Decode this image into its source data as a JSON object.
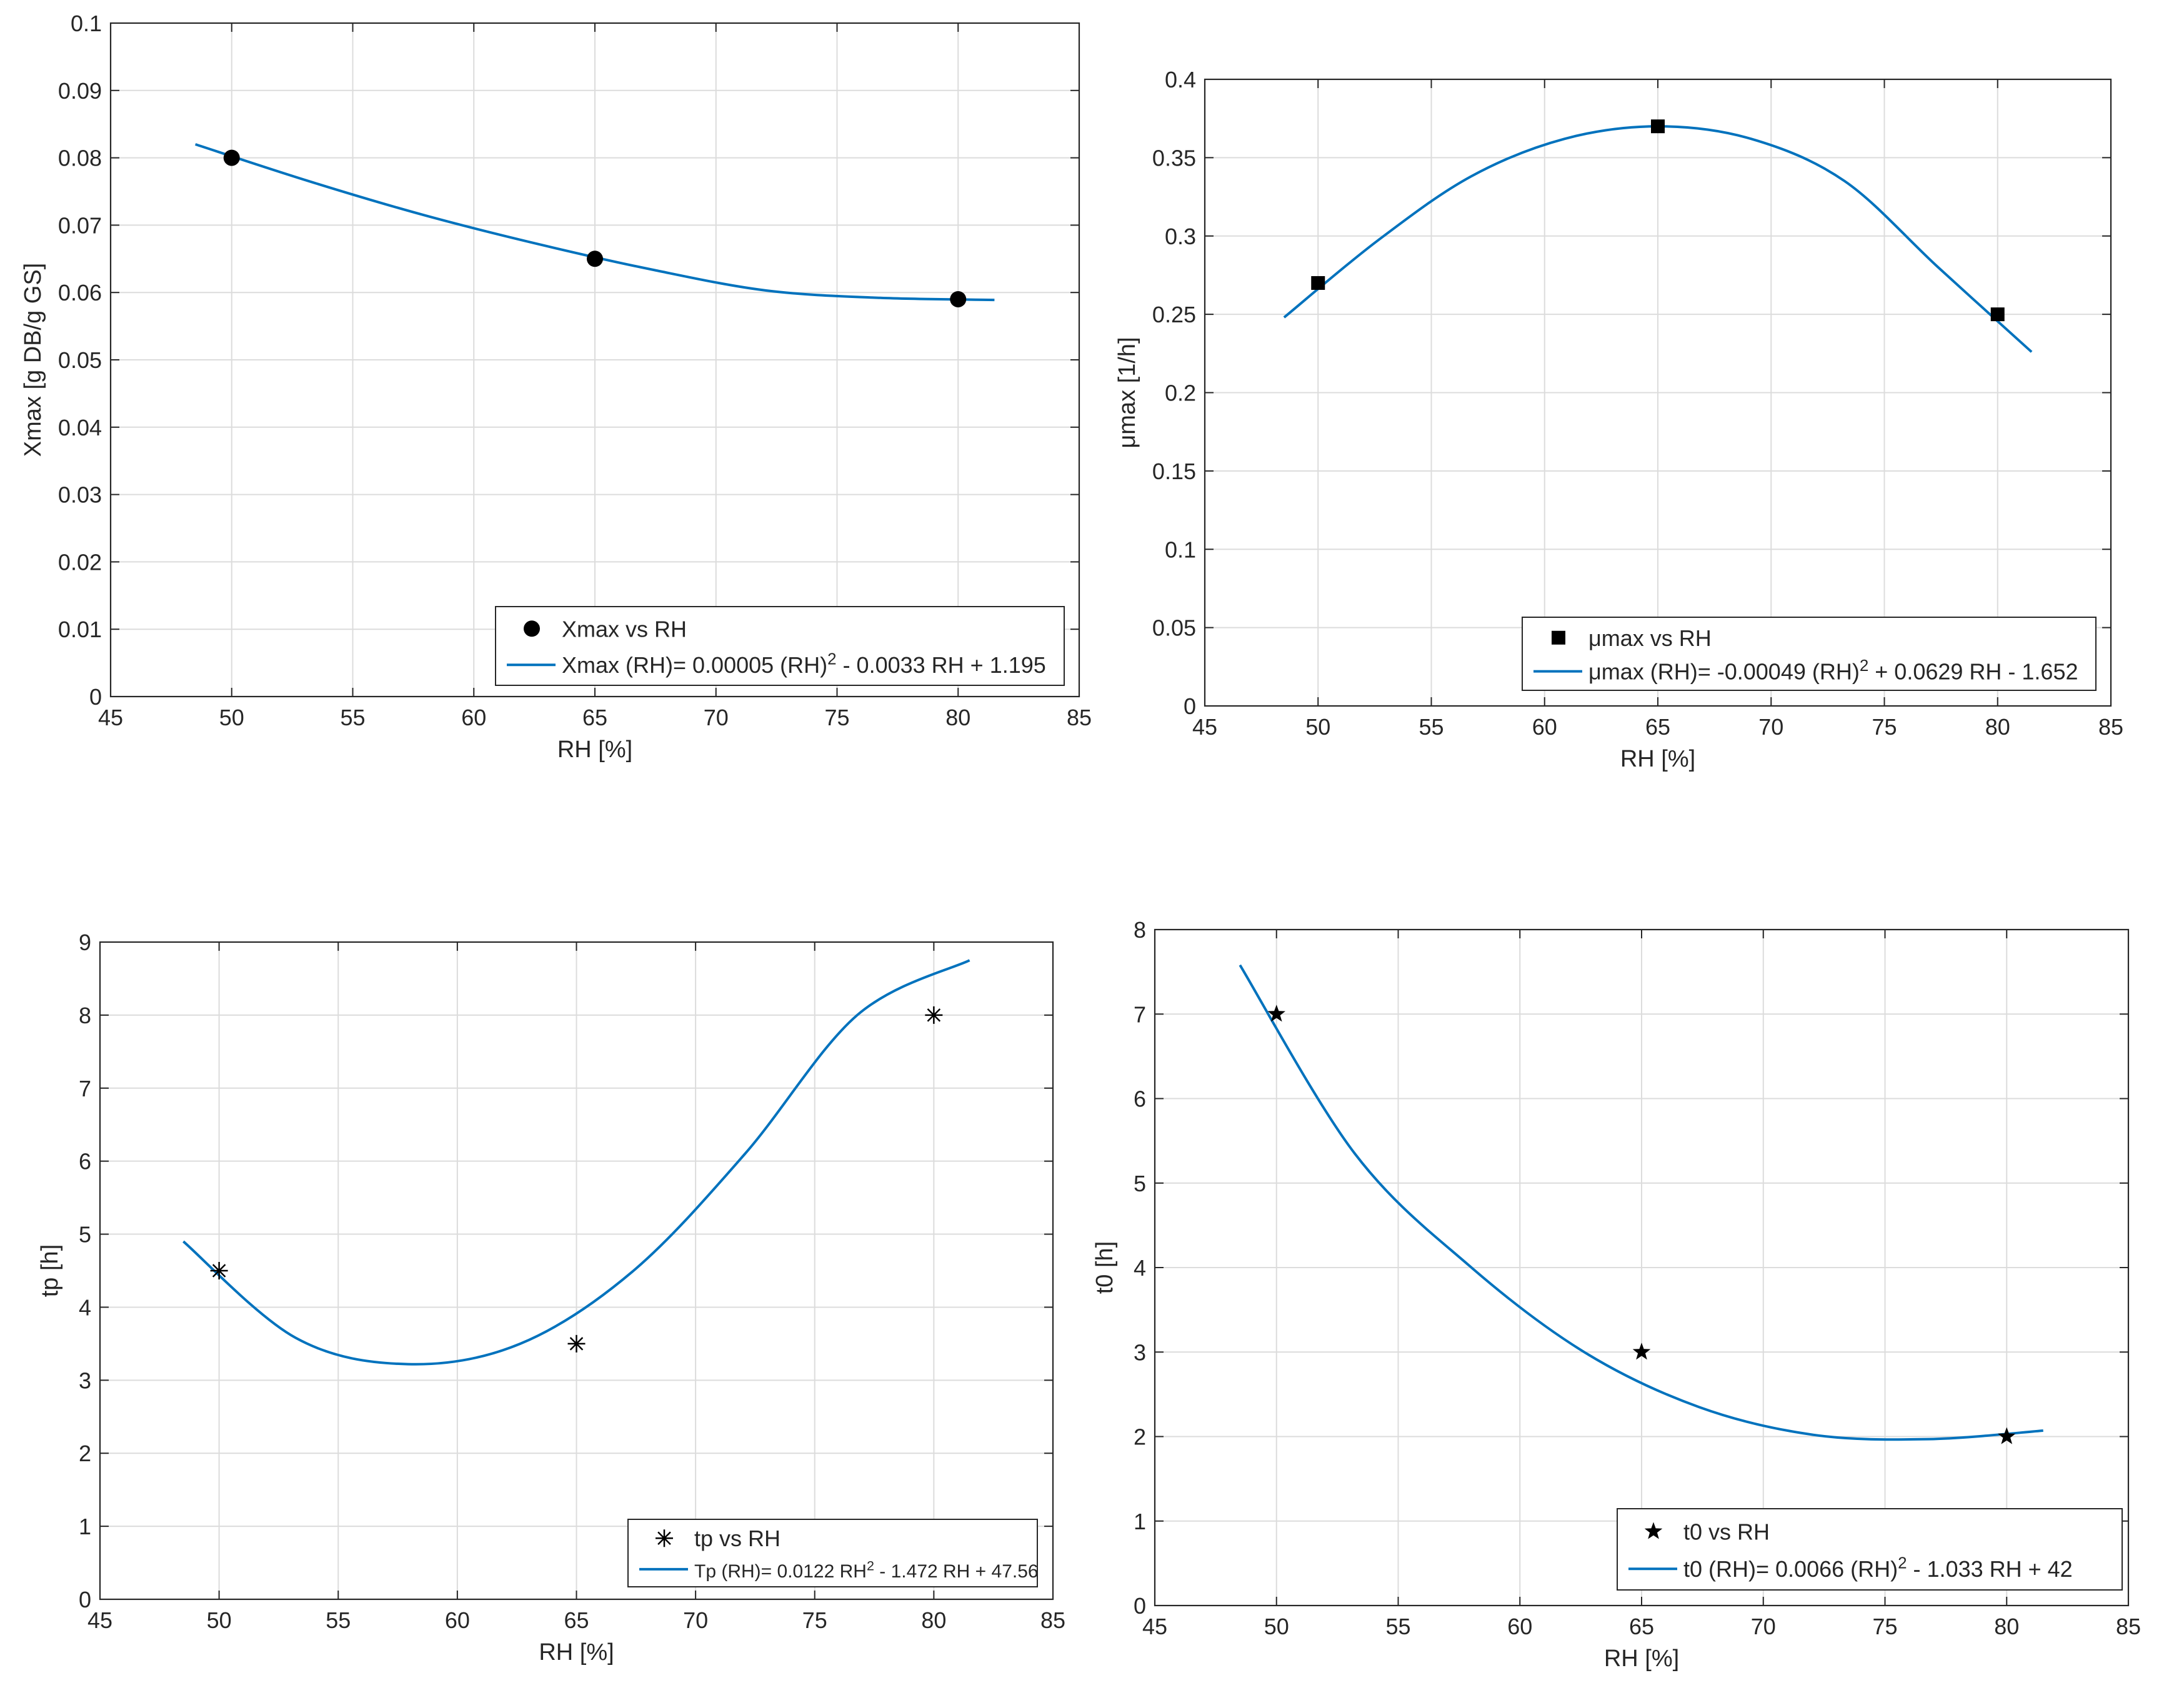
{
  "figure": {
    "line_color": "#0072BD",
    "marker_color": "#000000",
    "axis_color": "#262626",
    "grid_color": "#dcdcdc"
  },
  "chart_data": [
    {
      "type": "scatter",
      "xlabel": "RH [%]",
      "ylabel": "Xmax [g DB/g GS]",
      "xlim": [
        45,
        85
      ],
      "ylim": [
        0,
        0.1
      ],
      "xticks": [
        "45",
        "50",
        "55",
        "60",
        "65",
        "70",
        "75",
        "80",
        "85"
      ],
      "yticks": [
        "0",
        "0.01",
        "0.02",
        "0.03",
        "0.04",
        "0.05",
        "0.06",
        "0.07",
        "0.08",
        "0.09",
        "0.1"
      ],
      "grid": true,
      "legend_position": "bottom-right",
      "marker": "circle",
      "points": {
        "name": "Xmax vs RH",
        "x": [
          50,
          65,
          80
        ],
        "y": [
          0.08,
          0.065,
          0.059
        ]
      },
      "fit": {
        "label": "Xmax (RH)=  0.00005 (RH)² - 0.0033 RH + 1.195",
        "x_range": [
          48.5,
          81.5
        ],
        "y": [
          0.082,
          0.0765,
          0.0715,
          0.0672,
          0.0634,
          0.0603,
          0.0592,
          0.0589
        ]
      }
    },
    {
      "type": "scatter",
      "xlabel": "RH [%]",
      "ylabel": "μmax [1/h]",
      "xlim": [
        45,
        85
      ],
      "ylim": [
        0,
        0.4
      ],
      "xticks": [
        "45",
        "50",
        "55",
        "60",
        "65",
        "70",
        "75",
        "80",
        "85"
      ],
      "yticks": [
        "0",
        "0.05",
        "0.1",
        "0.15",
        "0.2",
        "0.25",
        "0.3",
        "0.35",
        "0.4"
      ],
      "grid": true,
      "legend_position": "bottom-right",
      "marker": "square",
      "points": {
        "name": "μmax vs RH",
        "x": [
          50,
          65,
          80
        ],
        "y": [
          0.27,
          0.37,
          0.25
        ]
      },
      "fit": {
        "label": "μmax (RH)= -0.00049 (RH)² + 0.0629 RH - 1.652",
        "x_range": [
          48.5,
          81.5
        ],
        "y": [
          0.248,
          0.297,
          0.338,
          0.362,
          0.37,
          0.362,
          0.335,
          0.28,
          0.226
        ]
      }
    },
    {
      "type": "scatter",
      "xlabel": "RH [%]",
      "ylabel": "tp [h]",
      "xlim": [
        45,
        85
      ],
      "ylim": [
        0,
        9
      ],
      "xticks": [
        "45",
        "50",
        "55",
        "60",
        "65",
        "70",
        "75",
        "80",
        "85"
      ],
      "yticks": [
        "0",
        "1",
        "2",
        "3",
        "4",
        "5",
        "6",
        "7",
        "8",
        "9"
      ],
      "grid": true,
      "legend_position": "bottom-right",
      "marker": "asterisk",
      "points": {
        "name": "tp vs RH",
        "x": [
          50,
          65,
          80
        ],
        "y": [
          4.5,
          3.5,
          8.0
        ]
      },
      "fit": {
        "label": "Tp (RH)= 0.0122 RH² - 1.472 RH + 47.56",
        "x_range": [
          48.5,
          81.5
        ],
        "y": [
          4.9,
          3.58,
          3.22,
          3.5,
          4.49,
          6.1,
          8.0,
          8.75
        ]
      }
    },
    {
      "type": "scatter",
      "xlabel": "RH [%]",
      "ylabel": "t0 [h]",
      "xlim": [
        45,
        85
      ],
      "ylim": [
        0,
        8
      ],
      "xticks": [
        "45",
        "50",
        "55",
        "60",
        "65",
        "70",
        "75",
        "80",
        "85"
      ],
      "yticks": [
        "0",
        "1",
        "2",
        "3",
        "4",
        "5",
        "6",
        "7",
        "8"
      ],
      "grid": true,
      "legend_position": "bottom-right",
      "marker": "star",
      "points": {
        "name": "t0 vs RH",
        "x": [
          50,
          65,
          80
        ],
        "y": [
          7,
          3,
          2
        ]
      },
      "fit": {
        "label": "t0 (RH)= 0.0066 (RH)² - 1.033 RH + 42",
        "x_range": [
          48.5,
          81.5
        ],
        "y": [
          7.58,
          5.35,
          4.02,
          3.0,
          2.35,
          2.02,
          1.97,
          2.07
        ]
      }
    }
  ]
}
